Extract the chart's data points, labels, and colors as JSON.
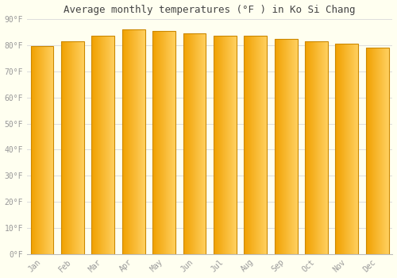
{
  "title": "Average monthly temperatures (°F ) in Ko Si Chang",
  "months": [
    "Jan",
    "Feb",
    "Mar",
    "Apr",
    "May",
    "Jun",
    "Jul",
    "Aug",
    "Sep",
    "Oct",
    "Nov",
    "Dec"
  ],
  "values": [
    79.5,
    81.5,
    83.5,
    86.0,
    85.5,
    84.5,
    83.5,
    83.5,
    82.5,
    81.5,
    80.5,
    79.0
  ],
  "bar_color_left": "#F0A000",
  "bar_color_right": "#FFD060",
  "edge_color": "#CC8800",
  "background_color": "#FFFFF0",
  "grid_color": "#DDDDDD",
  "text_color": "#999999",
  "title_color": "#444444",
  "ylim": [
    0,
    90
  ],
  "yticks": [
    0,
    10,
    20,
    30,
    40,
    50,
    60,
    70,
    80,
    90
  ],
  "ytick_labels": [
    "0°F",
    "10°F",
    "20°F",
    "30°F",
    "40°F",
    "50°F",
    "60°F",
    "70°F",
    "80°F",
    "90°F"
  ],
  "figsize": [
    5.0,
    3.5
  ],
  "dpi": 100
}
